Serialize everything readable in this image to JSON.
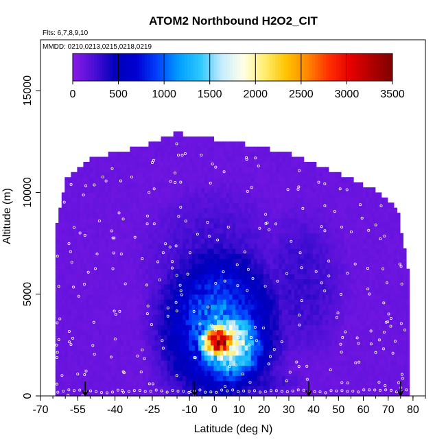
{
  "chart_data": {
    "type": "heatmap",
    "title": "ATOM2 Northbound H2O2_CIT",
    "subtitle": "Flts: 6,7,8,9,10",
    "annotation": "MMDD: 0210,0213,0215,0218,0219",
    "xlabel": "Latitude (deg N)",
    "ylabel": "Altitude (m)",
    "xlim": [
      -70,
      85
    ],
    "ylim": [
      0,
      17500
    ],
    "x_ticks": [
      "-70",
      "-55",
      "-40",
      "-25",
      "-10",
      "0",
      "10",
      "20",
      "30",
      "40",
      "50",
      "60",
      "70",
      "80"
    ],
    "y_ticks": [
      "0",
      "5000",
      "10000",
      "15000"
    ],
    "colorbar": {
      "range": [
        0,
        3500
      ],
      "tick_labels": [
        "0",
        "500",
        "1000",
        "1500",
        "2000",
        "2500",
        "3000",
        "3500"
      ],
      "colors": [
        "#8b1ae8",
        "#4b0fd6",
        "#0000b8",
        "#0000d2",
        "#0044ff",
        "#00a0ff",
        "#2ec8ff",
        "#c8ecff",
        "#ffffe6",
        "#ffee70",
        "#ffc400",
        "#ff8800",
        "#ff3000",
        "#e80000",
        "#b00000",
        "#800000"
      ]
    },
    "field": {
      "background": 120,
      "features": [
        {
          "lat": 2,
          "alt": 2700,
          "slat": 8,
          "salt": 900,
          "value": 3250
        },
        {
          "lat": 6,
          "alt": 2600,
          "slat": 14,
          "salt": 1900,
          "value": 1900
        },
        {
          "lat": 2,
          "alt": 3500,
          "slat": 22,
          "salt": 3500,
          "value": 1100
        },
        {
          "lat": 5,
          "alt": 700,
          "slat": 30,
          "salt": 900,
          "value": 450
        },
        {
          "lat": 0,
          "alt": 6500,
          "slat": 35,
          "salt": 4500,
          "value": 300
        },
        {
          "lat": 35,
          "alt": 5500,
          "slat": 22,
          "salt": 4500,
          "value": 300
        }
      ],
      "envelope": [
        {
          "lat": -64,
          "alt": 8000
        },
        {
          "lat": -60,
          "alt": 10500
        },
        {
          "lat": -50,
          "alt": 11500
        },
        {
          "lat": -25,
          "alt": 12300
        },
        {
          "lat": -15,
          "alt": 12800
        },
        {
          "lat": 10,
          "alt": 12300
        },
        {
          "lat": 30,
          "alt": 11800
        },
        {
          "lat": 50,
          "alt": 10800
        },
        {
          "lat": 65,
          "alt": 10000
        },
        {
          "lat": 74,
          "alt": 9000
        },
        {
          "lat": 78,
          "alt": 6000
        }
      ]
    },
    "flight_markers_lat": [
      -52,
      -8,
      38,
      75
    ]
  }
}
